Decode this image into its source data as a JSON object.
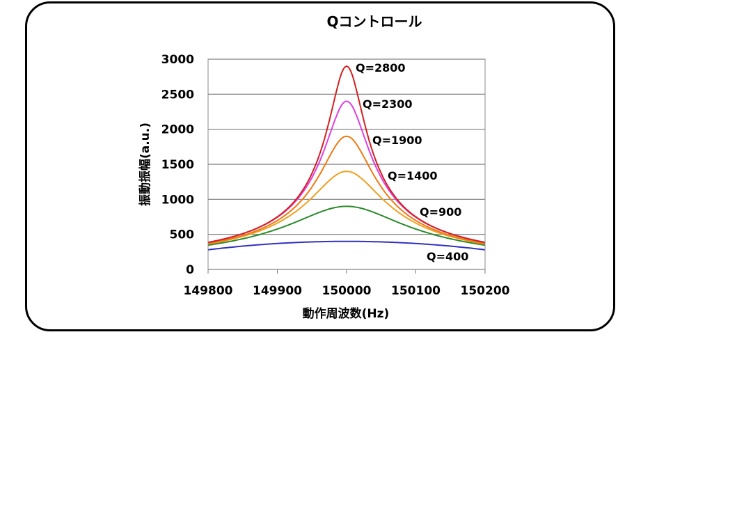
{
  "chart_data": {
    "type": "line",
    "title": "Qコントロール",
    "xlabel": "動作周波数(Hz)",
    "ylabel": "振動振幅(a.u.)",
    "xlim": [
      149800,
      150200
    ],
    "ylim": [
      0,
      3000
    ],
    "x_ticks": [
      "149800",
      "149900",
      "150000",
      "150100",
      "150200"
    ],
    "y_ticks": [
      "0",
      "500",
      "1000",
      "1500",
      "2000",
      "2500",
      "3000"
    ],
    "grid": "horizontal",
    "legend": "none",
    "series": [
      {
        "name": "Q=2800",
        "color": "#d42020",
        "q": 2800,
        "peak": 2900,
        "x": [
          149800,
          149900,
          149950,
          149980,
          150000,
          150020,
          150050,
          150100,
          150200
        ],
        "values": [
          370,
          700,
          1450,
          2400,
          2900,
          2400,
          1450,
          700,
          370
        ]
      },
      {
        "name": "Q=2300",
        "color": "#e040e0",
        "q": 2300,
        "peak": 2400,
        "x": [
          149800,
          149900,
          149950,
          149980,
          150000,
          150020,
          150050,
          150100,
          150200
        ],
        "values": [
          370,
          690,
          1350,
          2050,
          2400,
          2050,
          1350,
          690,
          370
        ]
      },
      {
        "name": "Q=1900",
        "color": "#f07a10",
        "q": 1900,
        "peak": 1900,
        "x": [
          149800,
          149900,
          149950,
          149980,
          150000,
          150020,
          150050,
          150100,
          150200
        ],
        "values": [
          370,
          670,
          1250,
          1730,
          1900,
          1730,
          1250,
          670,
          370
        ]
      },
      {
        "name": "Q=1400",
        "color": "#f0a020",
        "q": 1400,
        "peak": 1400,
        "x": [
          149800,
          149900,
          149950,
          149980,
          150000,
          150020,
          150050,
          150100,
          150200
        ],
        "values": [
          360,
          640,
          1070,
          1330,
          1400,
          1330,
          1070,
          640,
          360
        ]
      },
      {
        "name": "Q=900",
        "color": "#2a8a2a",
        "q": 900,
        "peak": 900,
        "x": [
          149800,
          149900,
          149950,
          149980,
          150000,
          150020,
          150050,
          150100,
          150200
        ],
        "values": [
          370,
          600,
          800,
          880,
          900,
          880,
          800,
          600,
          370
        ]
      },
      {
        "name": "Q=400",
        "color": "#3030c0",
        "q": 400,
        "peak": 400,
        "x": [
          149800,
          149900,
          149950,
          149980,
          150000,
          150020,
          150050,
          150100,
          150200
        ],
        "values": [
          280,
          360,
          390,
          400,
          400,
          400,
          390,
          360,
          280
        ]
      }
    ]
  }
}
